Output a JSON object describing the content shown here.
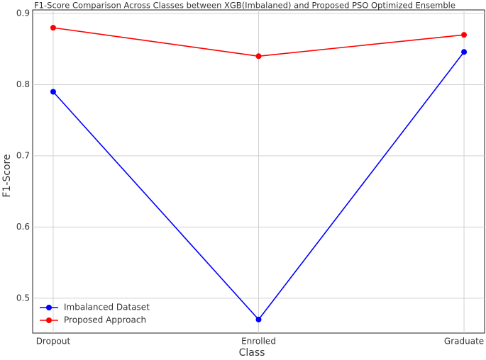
{
  "chart_data": {
    "type": "line",
    "title": "F1-Score Comparison Across Classes between XGB(Imbalaned) and Proposed PSO Optimized Ensemble",
    "x_label": "Class",
    "y_label": "F1-Score",
    "categories": [
      "Dropout",
      "Enrolled",
      "Graduate"
    ],
    "series": [
      {
        "name": "Imbalanced Dataset",
        "color": "#0000ff",
        "values": [
          0.79,
          0.47,
          0.846
        ]
      },
      {
        "name": "Proposed Approach",
        "color": "#ff0000",
        "values": [
          0.88,
          0.84,
          0.87
        ]
      }
    ],
    "ylim": [
      0.451,
      0.905
    ],
    "yticks": [
      0.5,
      0.6,
      0.7,
      0.8,
      0.9
    ],
    "grid": true,
    "legend": "lower left"
  }
}
